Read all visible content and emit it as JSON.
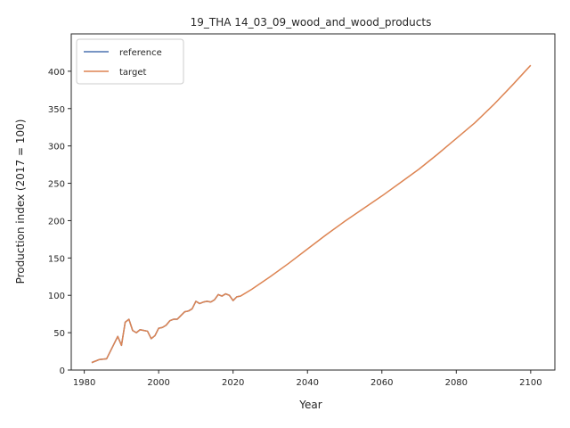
{
  "chart_data": {
    "type": "line",
    "title": "19_THA 14_03_09_wood_and_wood_products",
    "xlabel": "Year",
    "ylabel": "Production index (2017 = 100)",
    "xlim": [
      1976.5,
      2106.5
    ],
    "ylim": [
      0,
      450
    ],
    "xticks": [
      1980,
      2000,
      2020,
      2040,
      2060,
      2080,
      2100
    ],
    "yticks": [
      0,
      50,
      100,
      150,
      200,
      250,
      300,
      350,
      400
    ],
    "grid": false,
    "legend_position": "top-left",
    "series": [
      {
        "name": "reference",
        "color": "#4c72b0",
        "x": [
          1982,
          1984,
          1986,
          1989,
          1990,
          1991,
          1992,
          1993,
          1994,
          1995,
          1996,
          1997,
          1998,
          1999,
          2000,
          2001,
          2002,
          2003,
          2004,
          2005,
          2006,
          2007,
          2008,
          2009,
          2010,
          2011,
          2012,
          2013,
          2014,
          2015,
          2016,
          2017,
          2018,
          2019,
          2020,
          2021,
          2022
        ],
        "y": [
          10,
          14,
          15,
          45,
          33,
          64,
          68,
          53,
          50,
          54,
          53,
          52,
          42,
          46,
          56,
          57,
          60,
          66,
          68,
          68,
          73,
          78,
          79,
          82,
          92,
          89,
          91,
          92,
          91,
          94,
          101,
          99,
          102,
          100,
          93,
          98,
          99
        ]
      },
      {
        "name": "target",
        "color": "#dd8452",
        "x": [
          1982,
          1984,
          1986,
          1989,
          1990,
          1991,
          1992,
          1993,
          1994,
          1995,
          1996,
          1997,
          1998,
          1999,
          2000,
          2001,
          2002,
          2003,
          2004,
          2005,
          2006,
          2007,
          2008,
          2009,
          2010,
          2011,
          2012,
          2013,
          2014,
          2015,
          2016,
          2017,
          2018,
          2019,
          2020,
          2021,
          2022,
          2025,
          2030,
          2035,
          2040,
          2045,
          2050,
          2055,
          2060,
          2065,
          2070,
          2075,
          2080,
          2085,
          2090,
          2095,
          2100
        ],
        "y": [
          10,
          14,
          15,
          45,
          33,
          64,
          68,
          53,
          50,
          54,
          53,
          52,
          42,
          46,
          56,
          57,
          60,
          66,
          68,
          68,
          73,
          78,
          79,
          82,
          92,
          89,
          91,
          92,
          91,
          94,
          101,
          99,
          102,
          100,
          93,
          98,
          99,
          108,
          125,
          143,
          162,
          181,
          199,
          216,
          233,
          251,
          269,
          289,
          310,
          331,
          355,
          381,
          408
        ]
      }
    ]
  }
}
